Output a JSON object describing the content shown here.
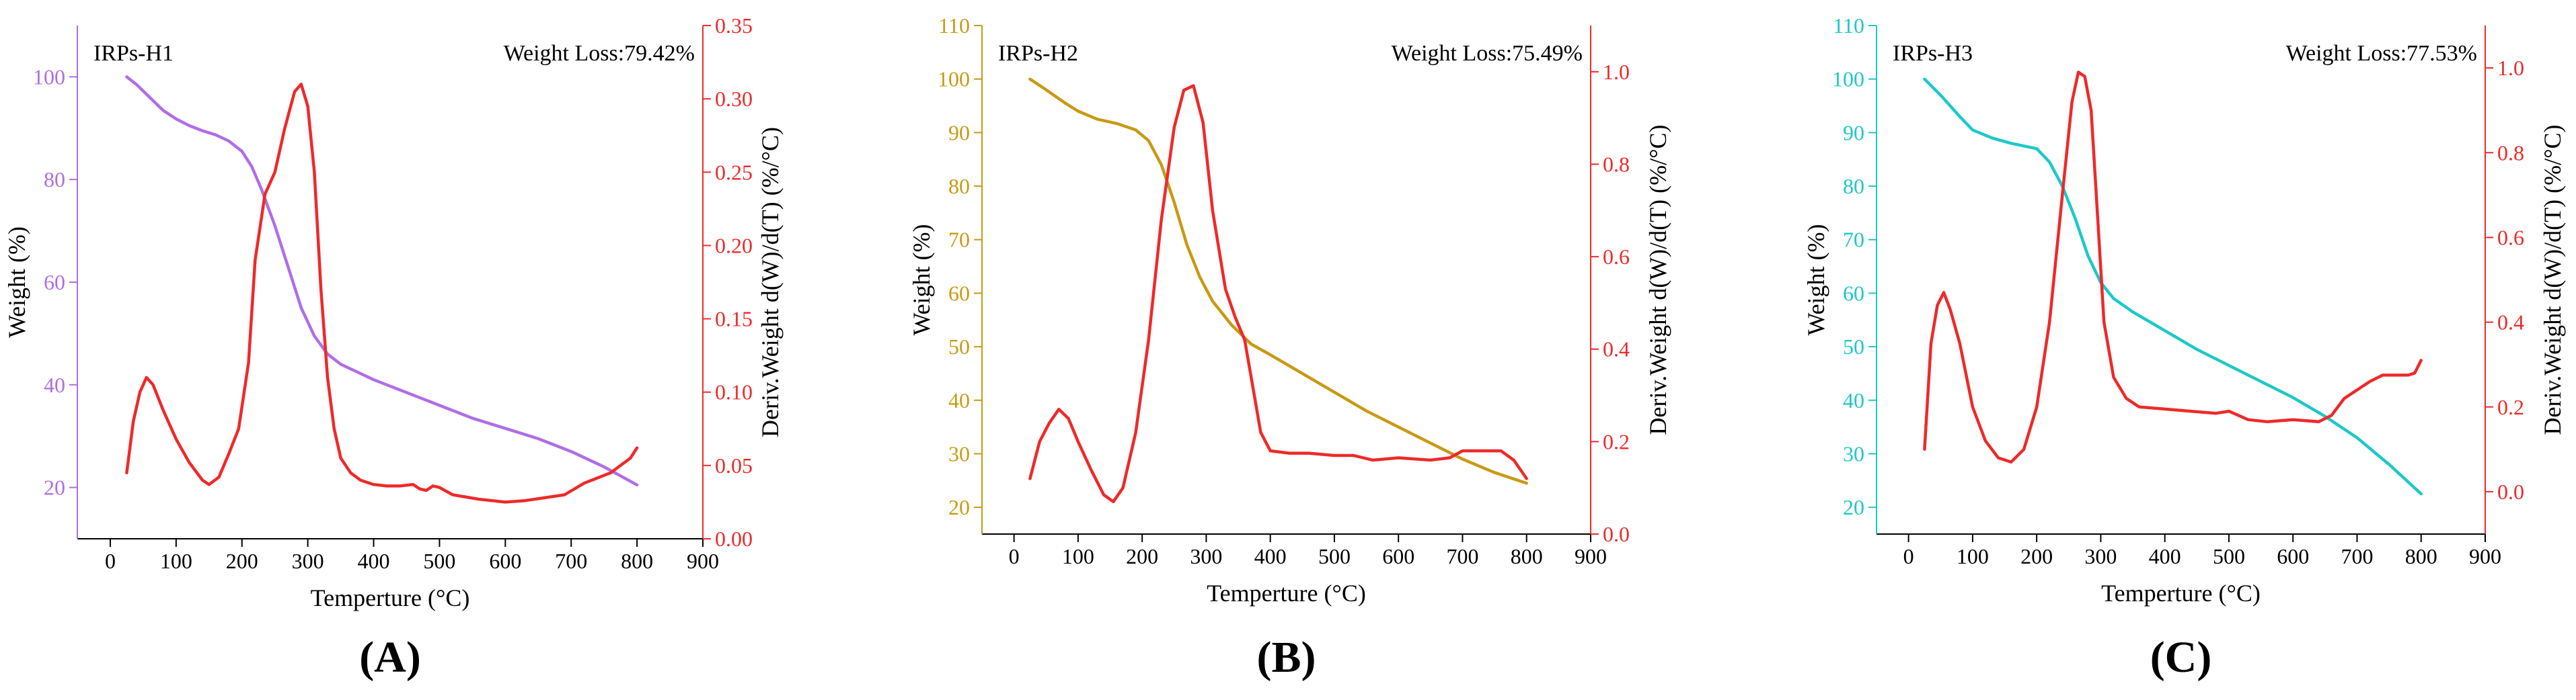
{
  "chart_data": [
    {
      "type": "line",
      "panel_label": "(A)",
      "sample": "IRPs-H1",
      "annotation": "Weight Loss:79.42%",
      "xlabel": "Temperture (°C)",
      "ylabel_left": "Weight (%)",
      "ylabel_right": "Deriv.Weight d(W)/d(T) (%/°C)",
      "xlim": [
        -50,
        900
      ],
      "xticks": [
        "0",
        "100",
        "200",
        "300",
        "400",
        "500",
        "600",
        "700",
        "800",
        "900"
      ],
      "ylim_left": [
        10,
        110
      ],
      "yticks_left": [
        "20",
        "40",
        "60",
        "80",
        "100"
      ],
      "ylim_right": [
        0,
        0.35
      ],
      "yticks_right": [
        "0.00",
        "0.05",
        "0.10",
        "0.15",
        "0.20",
        "0.25",
        "0.30",
        "0.35"
      ],
      "colors": {
        "weight": "#b06ee6",
        "deriv": "#ee2a2a"
      },
      "series": [
        {
          "name": "Weight",
          "axis": "left",
          "x": [
            25,
            40,
            60,
            80,
            100,
            120,
            140,
            160,
            180,
            200,
            215,
            230,
            250,
            270,
            290,
            310,
            330,
            350,
            370,
            400,
            450,
            500,
            550,
            600,
            650,
            700,
            750,
            800
          ],
          "values": [
            100,
            98.5,
            96,
            93.5,
            91.8,
            90.5,
            89.5,
            88.7,
            87.5,
            85.5,
            82.5,
            78,
            71,
            63,
            55,
            49.5,
            46,
            44,
            42.8,
            41,
            38.5,
            36,
            33.5,
            31.5,
            29.5,
            27,
            24,
            20.5
          ]
        },
        {
          "name": "Deriv.Weight",
          "axis": "right",
          "x": [
            25,
            35,
            45,
            55,
            65,
            80,
            100,
            120,
            140,
            150,
            165,
            180,
            195,
            210,
            220,
            235,
            250,
            265,
            280,
            290,
            300,
            310,
            320,
            330,
            340,
            350,
            365,
            380,
            400,
            420,
            440,
            460,
            470,
            480,
            490,
            500,
            520,
            560,
            600,
            630,
            660,
            690,
            720,
            760,
            790,
            800
          ],
          "values": [
            0.045,
            0.08,
            0.1,
            0.11,
            0.105,
            0.088,
            0.068,
            0.052,
            0.04,
            0.037,
            0.042,
            0.058,
            0.075,
            0.12,
            0.19,
            0.235,
            0.25,
            0.28,
            0.305,
            0.31,
            0.295,
            0.25,
            0.17,
            0.11,
            0.075,
            0.055,
            0.045,
            0.04,
            0.037,
            0.036,
            0.036,
            0.037,
            0.034,
            0.033,
            0.036,
            0.035,
            0.03,
            0.027,
            0.025,
            0.026,
            0.028,
            0.03,
            0.038,
            0.045,
            0.055,
            0.062
          ]
        }
      ]
    },
    {
      "type": "line",
      "panel_label": "(B)",
      "sample": "IRPs-H2",
      "annotation": "Weight Loss:75.49%",
      "xlabel": "Temperture (°C)",
      "ylabel_left": "Weight (%)",
      "ylabel_right": "Deriv.Weight d(W)/d(T) (%/°C)",
      "xlim": [
        -50,
        900
      ],
      "xticks": [
        "0",
        "100",
        "200",
        "300",
        "400",
        "500",
        "600",
        "700",
        "800",
        "900"
      ],
      "ylim_left": [
        15,
        110
      ],
      "yticks_left": [
        "20",
        "30",
        "40",
        "50",
        "60",
        "70",
        "80",
        "90",
        "100",
        "110"
      ],
      "ylim_right": [
        0,
        1.1
      ],
      "yticks_right": [
        "0.0",
        "0.2",
        "0.4",
        "0.6",
        "0.8",
        "1.0"
      ],
      "colors": {
        "weight": "#c89a14",
        "deriv": "#ee2a2a"
      },
      "series": [
        {
          "name": "Weight",
          "axis": "left",
          "x": [
            25,
            50,
            80,
            100,
            130,
            160,
            190,
            210,
            230,
            250,
            270,
            290,
            310,
            340,
            370,
            400,
            450,
            500,
            550,
            600,
            650,
            700,
            750,
            800
          ],
          "values": [
            100,
            98,
            95.5,
            94,
            92.5,
            91.7,
            90.5,
            88.5,
            84,
            77,
            69,
            63,
            58.5,
            54,
            50.5,
            48.5,
            45,
            41.5,
            38,
            35,
            32,
            29,
            26.5,
            24.5
          ]
        },
        {
          "name": "Deriv.Weight",
          "axis": "right",
          "x": [
            25,
            40,
            55,
            70,
            85,
            100,
            120,
            140,
            155,
            170,
            190,
            210,
            230,
            250,
            265,
            280,
            295,
            310,
            330,
            345,
            360,
            375,
            385,
            400,
            430,
            460,
            500,
            530,
            560,
            600,
            650,
            680,
            700,
            720,
            760,
            780,
            800
          ],
          "values": [
            0.12,
            0.2,
            0.24,
            0.27,
            0.25,
            0.2,
            0.14,
            0.085,
            0.07,
            0.1,
            0.22,
            0.42,
            0.68,
            0.88,
            0.96,
            0.97,
            0.89,
            0.7,
            0.53,
            0.47,
            0.42,
            0.3,
            0.22,
            0.18,
            0.175,
            0.175,
            0.17,
            0.17,
            0.16,
            0.165,
            0.16,
            0.165,
            0.18,
            0.18,
            0.18,
            0.16,
            0.12
          ]
        }
      ]
    },
    {
      "type": "line",
      "panel_label": "(C)",
      "sample": "IRPs-H3",
      "annotation": "Weight Loss:77.53%",
      "xlabel": "Temperture (°C)",
      "ylabel_left": "Weight (%)",
      "ylabel_right": "Deriv.Weight d(W)/d(T) (%/°C)",
      "xlim": [
        -50,
        900
      ],
      "xticks": [
        "0",
        "100",
        "200",
        "300",
        "400",
        "500",
        "600",
        "700",
        "800",
        "900"
      ],
      "ylim_left": [
        15,
        110
      ],
      "yticks_left": [
        "20",
        "30",
        "40",
        "50",
        "60",
        "70",
        "80",
        "90",
        "100",
        "110"
      ],
      "ylim_right": [
        -0.1,
        1.1
      ],
      "yticks_right": [
        "0.0",
        "0.2",
        "0.4",
        "0.6",
        "0.8",
        "1.0"
      ],
      "colors": {
        "weight": "#1ec8c8",
        "deriv": "#ee2a2a"
      },
      "series": [
        {
          "name": "Weight",
          "axis": "left",
          "x": [
            25,
            50,
            80,
            100,
            130,
            160,
            200,
            220,
            240,
            260,
            280,
            300,
            320,
            350,
            400,
            450,
            500,
            550,
            600,
            650,
            700,
            750,
            800
          ],
          "values": [
            100,
            97,
            93,
            90.5,
            89,
            88,
            87,
            84.5,
            80,
            74,
            67,
            62,
            59,
            56.5,
            53,
            49.5,
            46.5,
            43.5,
            40.5,
            37,
            33,
            28,
            22.5
          ]
        },
        {
          "name": "Deriv.Weight",
          "axis": "right",
          "x": [
            25,
            35,
            45,
            55,
            65,
            80,
            100,
            120,
            140,
            160,
            180,
            200,
            220,
            240,
            255,
            265,
            275,
            285,
            295,
            305,
            320,
            340,
            360,
            400,
            440,
            480,
            500,
            530,
            560,
            600,
            640,
            660,
            680,
            700,
            720,
            740,
            780,
            790,
            800
          ],
          "values": [
            0.1,
            0.35,
            0.44,
            0.47,
            0.43,
            0.35,
            0.2,
            0.12,
            0.08,
            0.07,
            0.1,
            0.2,
            0.4,
            0.7,
            0.92,
            0.99,
            0.98,
            0.9,
            0.65,
            0.4,
            0.27,
            0.22,
            0.2,
            0.195,
            0.19,
            0.185,
            0.19,
            0.17,
            0.165,
            0.17,
            0.165,
            0.18,
            0.22,
            0.24,
            0.26,
            0.275,
            0.275,
            0.28,
            0.31
          ]
        }
      ]
    }
  ]
}
